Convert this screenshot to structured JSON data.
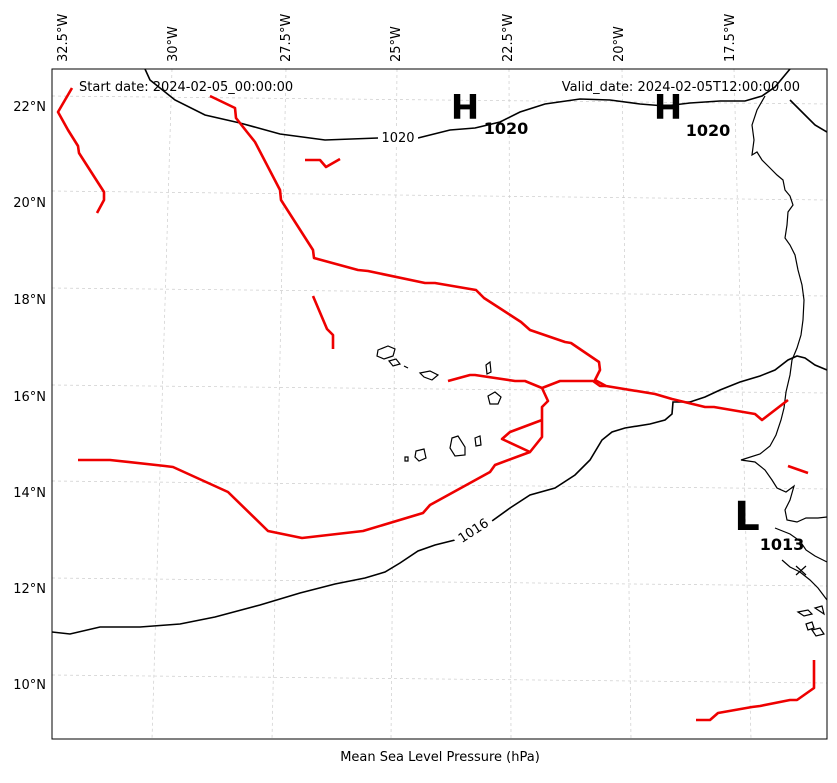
{
  "header": {
    "start_date": "Start date: 2024-02-05_00:00:00",
    "valid_date": "Valid_date: 2024-02-05T12:00:00.00"
  },
  "axis": {
    "lon_ticks": [
      "32.5°W",
      "30°W",
      "27.5°W",
      "25°W",
      "22.5°W",
      "20°W",
      "17.5°W"
    ],
    "lat_ticks": [
      "22°N",
      "20°N",
      "18°N",
      "16°N",
      "14°N",
      "12°N",
      "10°N"
    ],
    "xlabel": "Mean Sea Level Pressure (hPa)"
  },
  "isobar_labels": [
    "1020",
    "1016"
  ],
  "pressure_centers": [
    {
      "type": "H",
      "value": "1020"
    },
    {
      "type": "H",
      "value": "1020"
    },
    {
      "type": "L",
      "value": "1013"
    }
  ],
  "colors": {
    "isobar": "#000000",
    "front": "#ee0000",
    "grid": "#cccccc",
    "coast": "#000000"
  }
}
